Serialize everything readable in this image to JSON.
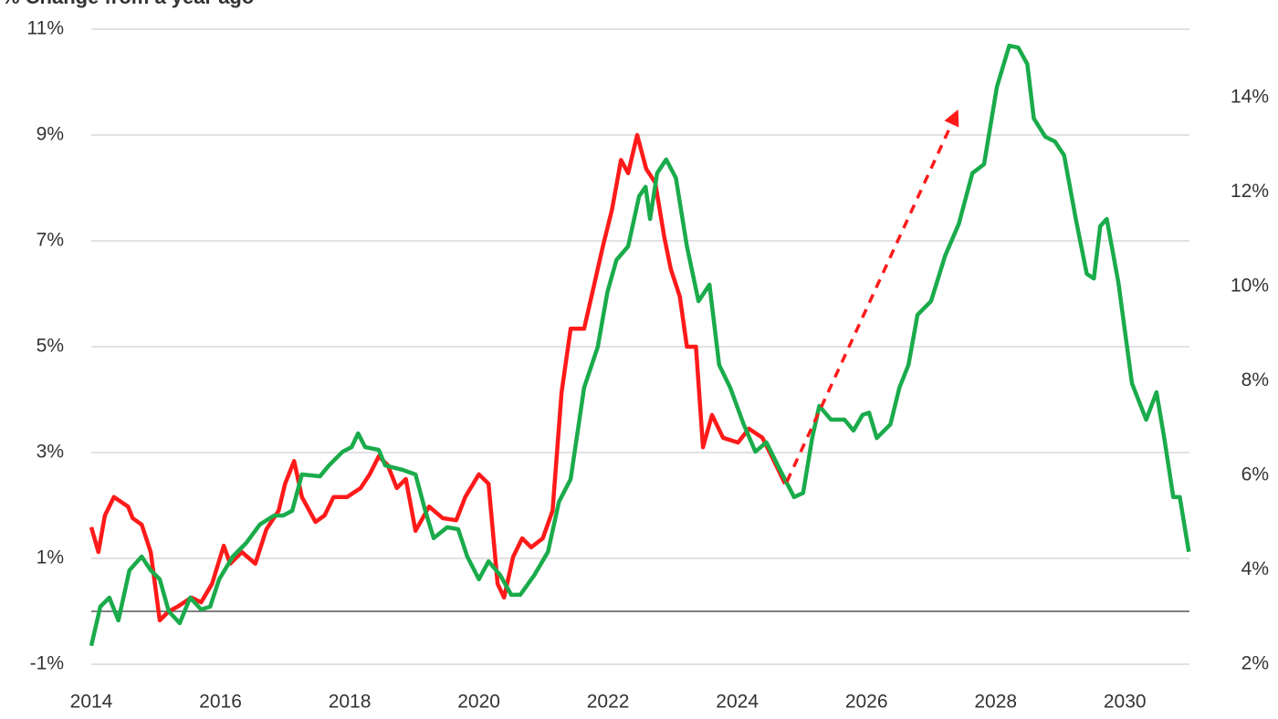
{
  "chart_data": {
    "type": "line",
    "title": "% Change from a year ago",
    "xlim": [
      2014,
      2031
    ],
    "xticks": [
      2014,
      2016,
      2018,
      2020,
      2022,
      2024,
      2026,
      2028,
      2030
    ],
    "ylim": [
      -1,
      11
    ],
    "yticks": [
      {
        "value": -1,
        "label": "-1%"
      },
      {
        "value": 1,
        "label": "1%"
      },
      {
        "value": 3,
        "label": "3%"
      },
      {
        "value": 5,
        "label": "5%"
      },
      {
        "value": 7,
        "label": "7%"
      },
      {
        "value": 9,
        "label": "9%"
      },
      {
        "value": 11,
        "label": "11%"
      }
    ],
    "y2lim": [
      2,
      15.45
    ],
    "y2ticks": [
      {
        "value": 2,
        "label": "2%"
      },
      {
        "value": 4,
        "label": "4%"
      },
      {
        "value": 6,
        "label": "6%"
      },
      {
        "value": 8,
        "label": "8%"
      },
      {
        "value": 10,
        "label": "10%"
      },
      {
        "value": 12,
        "label": "12%"
      },
      {
        "value": 14,
        "label": "14%"
      }
    ],
    "grid": true,
    "series": [
      {
        "color": "#ff1a1a",
        "axis": "y",
        "x": [
          2014.0,
          2014.11,
          2014.21,
          2014.35,
          2014.57,
          2014.64,
          2014.78,
          2014.92,
          2015.06,
          2015.2,
          2015.34,
          2015.55,
          2015.7,
          2015.87,
          2016.05,
          2016.15,
          2016.33,
          2016.54,
          2016.71,
          2016.9,
          2017.0,
          2017.14,
          2017.26,
          2017.47,
          2017.61,
          2017.75,
          2017.96,
          2018.17,
          2018.31,
          2018.45,
          2018.59,
          2018.73,
          2018.87,
          2019.02,
          2019.23,
          2019.44,
          2019.65,
          2019.79,
          2020.0,
          2020.15,
          2020.29,
          2020.39,
          2020.53,
          2020.67,
          2020.81,
          2020.99,
          2021.14,
          2021.28,
          2021.42,
          2021.63,
          2021.92,
          2022.06,
          2022.2,
          2022.31,
          2022.45,
          2022.59,
          2022.73,
          2022.87,
          2022.97,
          2023.11,
          2023.22,
          2023.36,
          2023.47,
          2023.61,
          2023.78,
          2024.01,
          2024.18,
          2024.39,
          2024.57,
          2024.74
        ],
        "values": [
          1.59,
          1.12,
          1.81,
          2.16,
          1.98,
          1.76,
          1.64,
          1.12,
          -0.17,
          0,
          0.09,
          0.26,
          0.17,
          0.52,
          1.24,
          0.9,
          1.12,
          0.9,
          1.55,
          1.9,
          2.41,
          2.84,
          2.16,
          1.69,
          1.81,
          2.16,
          2.16,
          2.33,
          2.59,
          2.93,
          2.76,
          2.33,
          2.5,
          1.52,
          1.98,
          1.76,
          1.72,
          2.16,
          2.59,
          2.41,
          0.52,
          0.26,
          1.03,
          1.38,
          1.21,
          1.38,
          1.9,
          4.14,
          5.34,
          5.34,
          6.9,
          7.59,
          8.53,
          8.28,
          9.0,
          8.36,
          8.1,
          7.07,
          6.47,
          5.95,
          5.0,
          5.0,
          3.1,
          3.71,
          3.28,
          3.19,
          3.45,
          3.28,
          2.84,
          2.41
        ]
      },
      {
        "color": "#1aab4b",
        "axis": "y2",
        "x": [
          2014.0,
          2014.14,
          2014.28,
          2014.42,
          2014.59,
          2014.78,
          2014.92,
          2015.06,
          2015.2,
          2015.37,
          2015.53,
          2015.7,
          2015.84,
          2015.98,
          2016.19,
          2016.4,
          2016.61,
          2016.83,
          2016.97,
          2017.11,
          2017.26,
          2017.54,
          2017.68,
          2017.89,
          2018.03,
          2018.13,
          2018.24,
          2018.45,
          2018.55,
          2018.81,
          2019.02,
          2019.17,
          2019.3,
          2019.51,
          2019.68,
          2019.82,
          2020.0,
          2020.15,
          2020.33,
          2020.5,
          2020.64,
          2020.86,
          2021.07,
          2021.24,
          2021.42,
          2021.63,
          2021.84,
          2021.99,
          2022.13,
          2022.31,
          2022.48,
          2022.58,
          2022.65,
          2022.76,
          2022.9,
          2023.05,
          2023.22,
          2023.4,
          2023.57,
          2023.72,
          2023.89,
          2024.1,
          2024.28,
          2024.45,
          2024.66,
          2024.88,
          2025.02,
          2025.16,
          2025.27,
          2025.45,
          2025.66,
          2025.8,
          2025.94,
          2026.04,
          2026.16,
          2026.37,
          2026.51,
          2026.65,
          2026.79,
          2027.0,
          2027.22,
          2027.43,
          2027.64,
          2027.82,
          2028.02,
          2028.21,
          2028.35,
          2028.49,
          2028.59,
          2028.77,
          2028.92,
          2029.06,
          2029.24,
          2029.41,
          2029.52,
          2029.62,
          2029.72,
          2029.9,
          2030.11,
          2030.33,
          2030.49,
          2030.61,
          2030.75,
          2030.85,
          2030.99
        ],
        "values": [
          2.39,
          3.22,
          3.41,
          2.93,
          3.99,
          4.28,
          3.99,
          3.8,
          3.12,
          2.87,
          3.41,
          3.16,
          3.22,
          3.8,
          4.28,
          4.57,
          4.96,
          5.15,
          5.15,
          5.25,
          6.02,
          5.98,
          6.21,
          6.5,
          6.6,
          6.89,
          6.6,
          6.54,
          6.21,
          6.12,
          6.02,
          5.25,
          4.67,
          4.9,
          4.86,
          4.28,
          3.8,
          4.18,
          3.89,
          3.47,
          3.47,
          3.89,
          4.38,
          5.44,
          5.92,
          7.86,
          8.72,
          9.88,
          10.56,
          10.85,
          11.91,
          12.11,
          11.43,
          12.4,
          12.69,
          12.3,
          10.85,
          9.69,
          10.04,
          8.34,
          7.86,
          7.08,
          6.5,
          6.7,
          6.12,
          5.54,
          5.63,
          6.79,
          7.47,
          7.18,
          7.18,
          6.95,
          7.28,
          7.33,
          6.79,
          7.08,
          7.86,
          8.34,
          9.4,
          9.69,
          10.66,
          11.33,
          12.4,
          12.59,
          14.23,
          15.1,
          15.06,
          14.71,
          13.56,
          13.17,
          13.07,
          12.78,
          11.43,
          10.27,
          10.17,
          11.28,
          11.43,
          10.08,
          7.95,
          7.18,
          7.76,
          6.79,
          5.54,
          5.54,
          4.38
        ]
      }
    ]
  }
}
